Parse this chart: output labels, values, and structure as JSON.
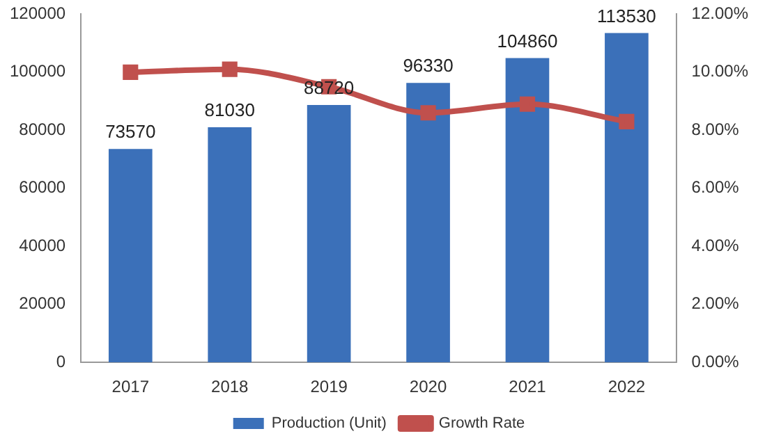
{
  "chart_data": {
    "type": "bar",
    "categories": [
      "2017",
      "2018",
      "2019",
      "2020",
      "2021",
      "2022"
    ],
    "series": [
      {
        "name": "Production (Unit)",
        "color": "#3b70b9",
        "values": [
          73570,
          81030,
          88720,
          96330,
          104860,
          113530
        ],
        "value_labels": [
          "73570",
          "81030",
          "88720",
          "96330",
          "104860",
          "113530"
        ]
      },
      {
        "name": "Growth Rate",
        "type": "line",
        "axis": "y2",
        "color": "#c0504d",
        "values": [
          10.0,
          10.1,
          9.5,
          8.6,
          8.9,
          8.3
        ]
      }
    ],
    "ylim": [
      0,
      120000
    ],
    "yticks": [
      0,
      20000,
      40000,
      60000,
      80000,
      100000,
      120000
    ],
    "y2lim": [
      0,
      12
    ],
    "y2ticks": [
      {
        "value": 0,
        "label": "0.00%"
      },
      {
        "value": 2,
        "label": "2.00%"
      },
      {
        "value": 4,
        "label": "4.00%"
      },
      {
        "value": 6,
        "label": "6.00%"
      },
      {
        "value": 8,
        "label": "8.00%"
      },
      {
        "value": 10,
        "label": "10.00%"
      },
      {
        "value": 12,
        "label": "12.00%"
      }
    ],
    "legend": "bottom",
    "marker": "square",
    "grid": false
  }
}
